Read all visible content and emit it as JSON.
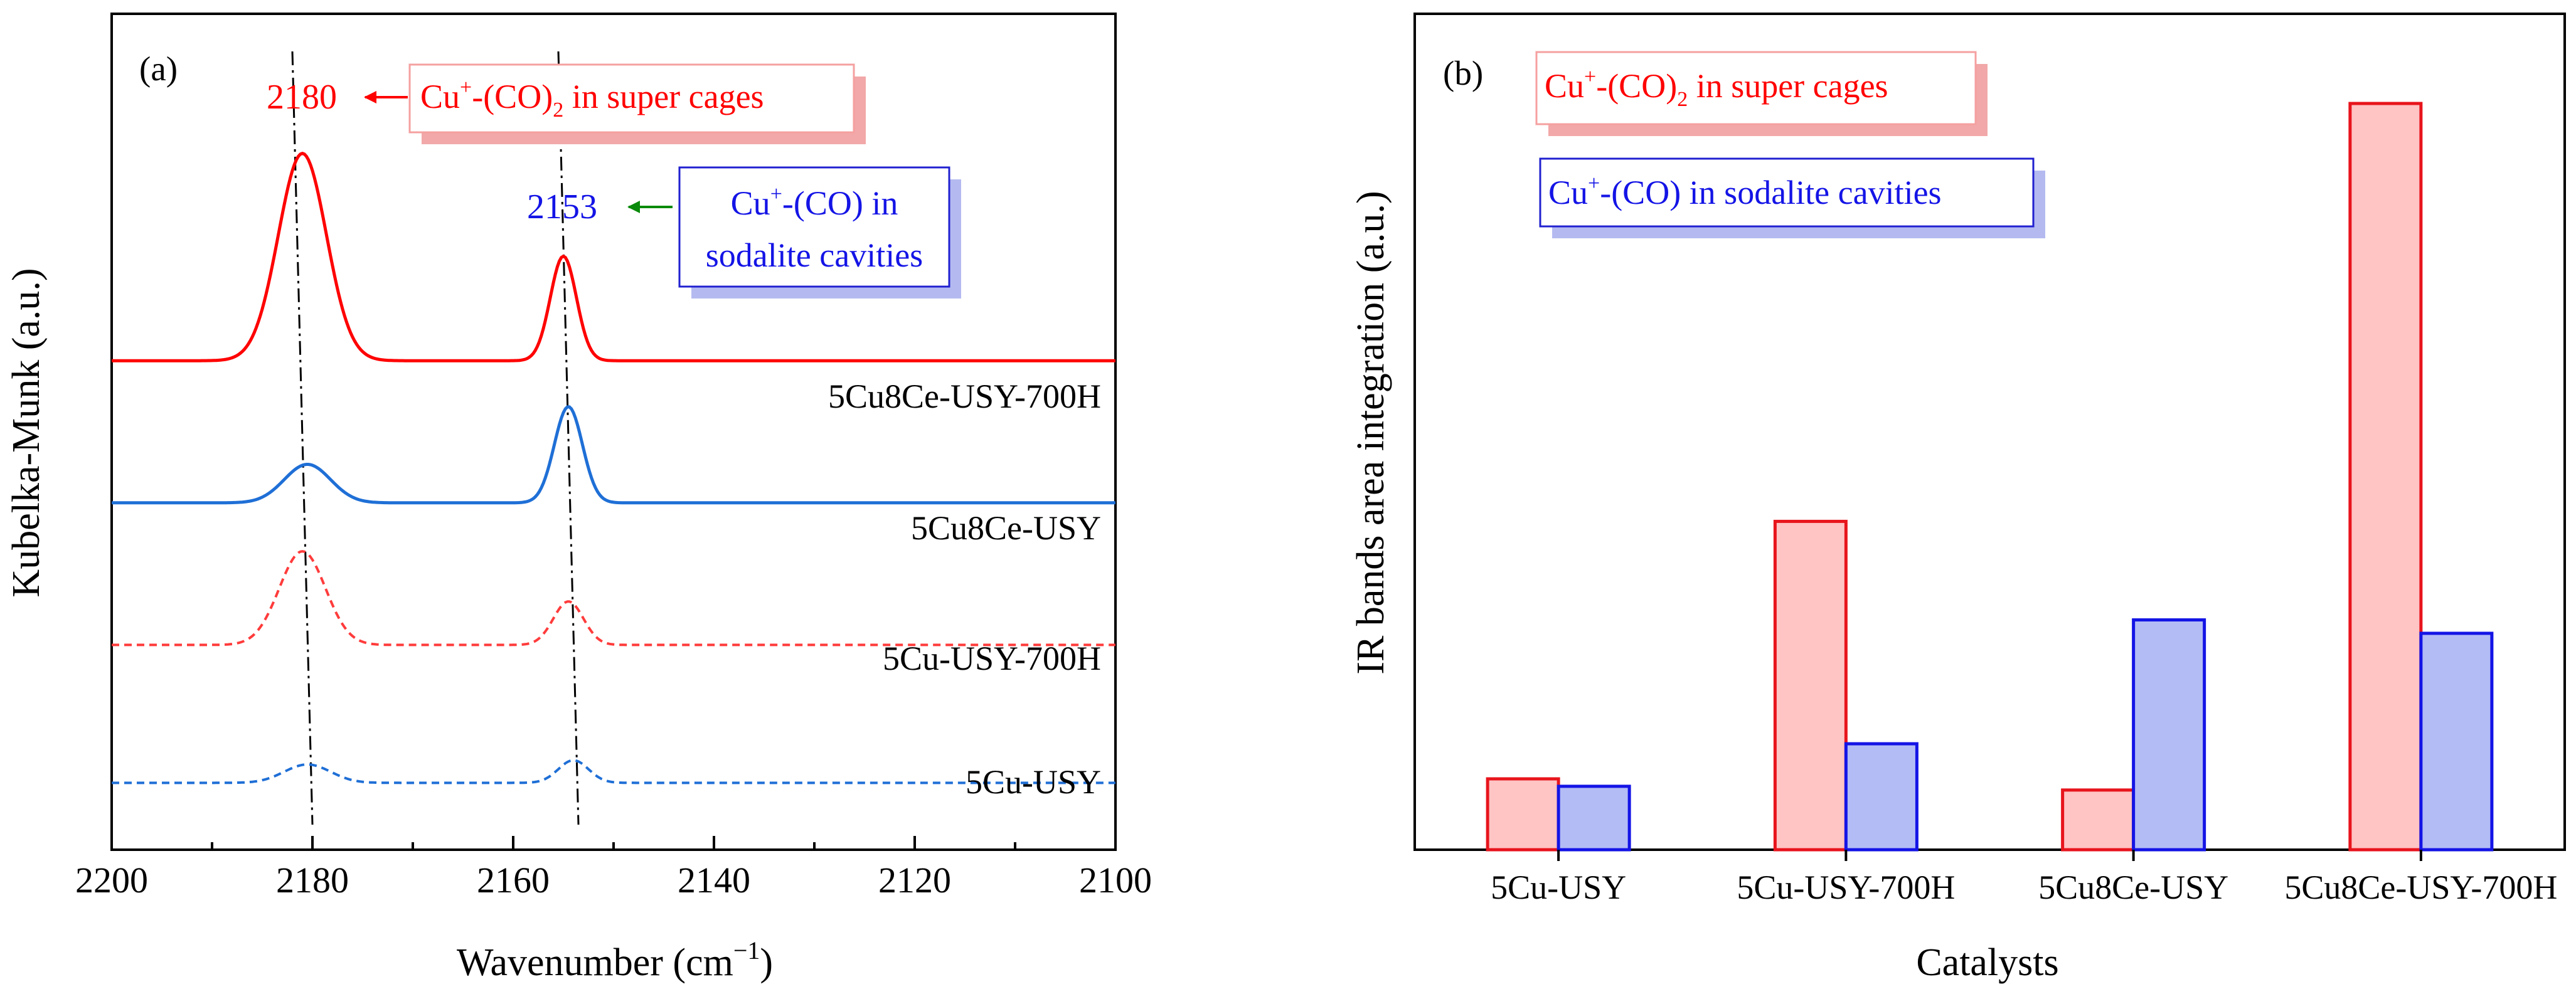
{
  "chart_data": [
    {
      "type": "line",
      "panel": "(a)",
      "xlabel_main": "Wavenumber (cm",
      "xlabel_sup": "−1",
      "xlabel_end": ")",
      "ylabel": "Kubelka-Munk (a.u.)",
      "xlim": [
        2200,
        2100
      ],
      "ylim": [
        0,
        1
      ],
      "xticks": [
        2200,
        2180,
        2160,
        2140,
        2120,
        2100
      ],
      "series": [
        {
          "name": "5Cu8Ce-USY-700H",
          "color": "#ff0000",
          "style": "solid",
          "baseline": 0.585,
          "peaks": [
            {
              "x": 2181,
              "h": 0.248,
              "w": 2.4
            },
            {
              "x": 2155,
              "h": 0.125,
              "w": 1.3
            }
          ]
        },
        {
          "name": "5Cu8Ce-USY",
          "color": "#1f6fd6",
          "style": "solid",
          "baseline": 0.415,
          "peaks": [
            {
              "x": 2180.5,
              "h": 0.046,
              "w": 2.3
            },
            {
              "x": 2154.5,
              "h": 0.115,
              "w": 1.4
            }
          ]
        },
        {
          "name": "5Cu-USY-700H",
          "color": "#ff3b3b",
          "style": "dashed",
          "baseline": 0.245,
          "peaks": [
            {
              "x": 2181,
              "h": 0.112,
              "w": 2.3
            },
            {
              "x": 2154.5,
              "h": 0.052,
              "w": 1.5
            }
          ]
        },
        {
          "name": "5Cu-USY",
          "color": "#1f6fd6",
          "style": "dashed",
          "baseline": 0.08,
          "peaks": [
            {
              "x": 2180.5,
              "h": 0.022,
              "w": 2.3
            },
            {
              "x": 2154,
              "h": 0.027,
              "w": 1.5
            }
          ]
        }
      ],
      "refs": [
        {
          "x_top": 2182,
          "x_bottom": 2180
        },
        {
          "x_top": 2155.5,
          "x_bottom": 2153.5
        }
      ],
      "annotations": {
        "peak1_value": "2180",
        "peak1_label_main": "Cu",
        "peak1_label_sup": "+",
        "peak1_label_mid": "-(CO)",
        "peak1_label_sub": "2",
        "peak1_label_end": " in super cages",
        "peak2_value": "2153",
        "peak2_label_main": "Cu",
        "peak2_label_sup": "+",
        "peak2_label_mid": "-(CO) in",
        "peak2_label_line2": "sodalite cavities"
      }
    },
    {
      "type": "bar",
      "panel": "(b)",
      "xlabel": "Catalysts",
      "ylabel": "IR bands area integration (a.u.)",
      "ylim": [
        0,
        1
      ],
      "categories": [
        "5Cu-USY",
        "5Cu-USY-700H",
        "5Cu8Ce-USY",
        "5Cu8Ce-USY-700H"
      ],
      "series": [
        {
          "name": "Cu+-(CO)2 in super cages",
          "label_main": "Cu",
          "label_sup": "+",
          "label_mid": "-(CO)",
          "label_sub": "2",
          "label_end": " in super cages",
          "fill": "#ffc4c4",
          "edge": "#e8141c",
          "values": [
            0.095,
            0.44,
            0.08,
            1.0
          ]
        },
        {
          "name": "Cu+-(CO) in sodalite cavities",
          "label_main": "Cu",
          "label_sup": "+",
          "label_mid": "-(CO) in sodalite cavities",
          "fill": "#b3bcf5",
          "edge": "#1414e6",
          "values": [
            0.085,
            0.142,
            0.308,
            0.29
          ]
        }
      ]
    }
  ]
}
